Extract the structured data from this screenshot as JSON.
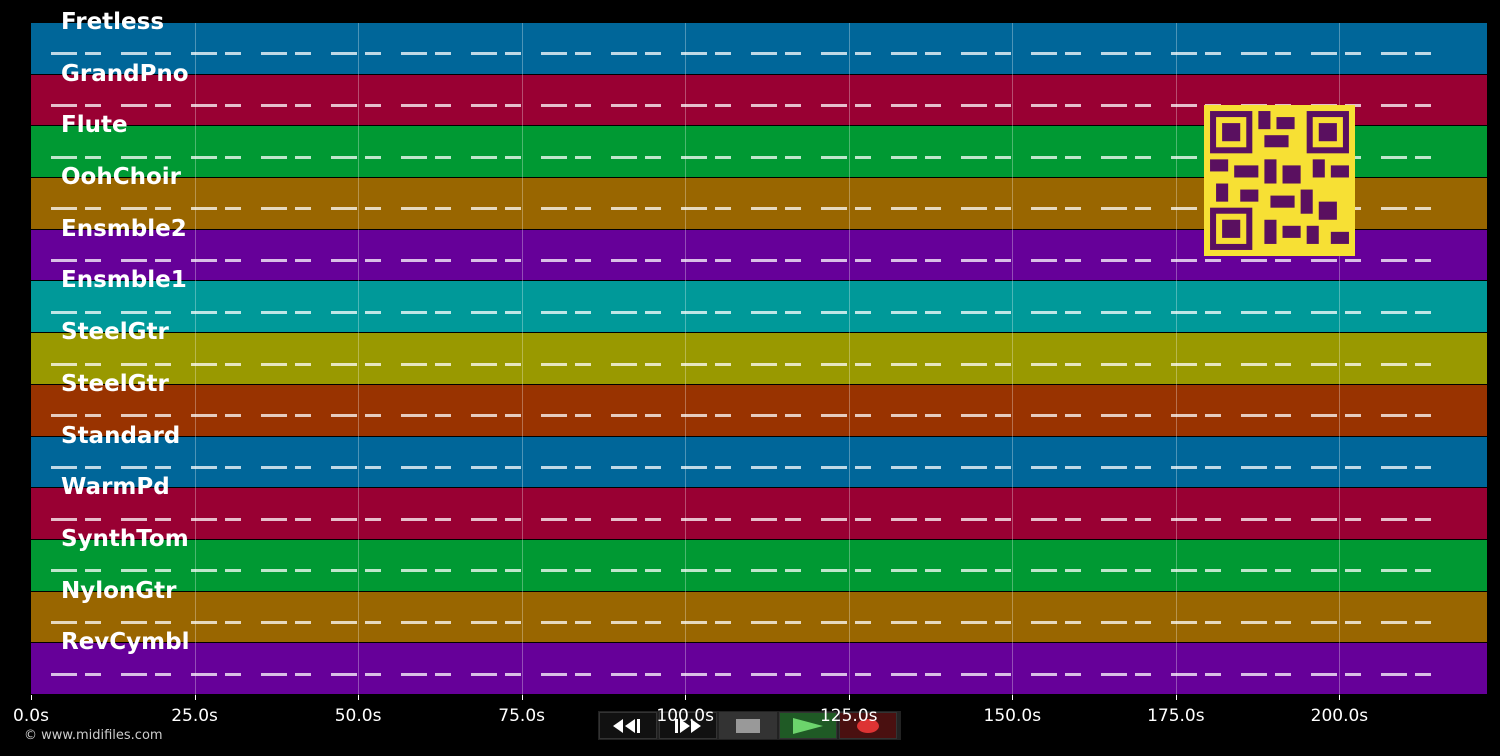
{
  "tracks": [
    {
      "name": "Fretless",
      "color": "#006699"
    },
    {
      "name": "GrandPno",
      "color": "#990033"
    },
    {
      "name": "Flute",
      "color": "#009933"
    },
    {
      "name": "OohChoir",
      "color": "#996600"
    },
    {
      "name": "Ensmble2",
      "color": "#660099"
    },
    {
      "name": "Ensmble1",
      "color": "#009999"
    },
    {
      "name": "SteelGtr",
      "color": "#999900"
    },
    {
      "name": "SteelGtr",
      "color": "#993300"
    },
    {
      "name": "Standard",
      "color": "#006699"
    },
    {
      "name": "WarmPd",
      "color": "#990033"
    },
    {
      "name": "SynthTom",
      "color": "#009933"
    },
    {
      "name": "NylonGtr",
      "color": "#996600"
    },
    {
      "name": "RevCymbl",
      "color": "#660099"
    }
  ],
  "time_axis": {
    "ticks": [
      "0.0s",
      "25.0s",
      "50.0s",
      "75.0s",
      "100.0s",
      "125.0s",
      "150.0s",
      "175.0s",
      "200.0s"
    ]
  },
  "footer": "© www.midifiles.com"
}
